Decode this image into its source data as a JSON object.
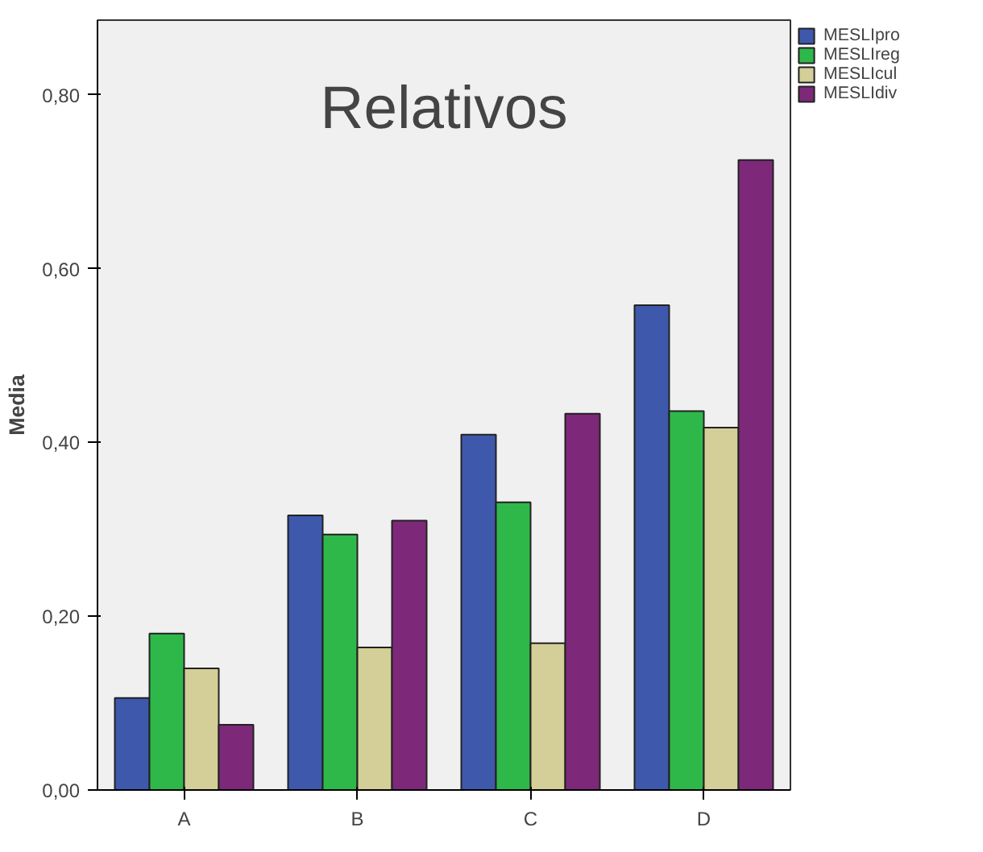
{
  "chart_data": {
    "type": "bar",
    "title": "Relativos",
    "ylabel": "Media",
    "categories": [
      "A",
      "B",
      "C",
      "D"
    ],
    "series": [
      {
        "name": "MESLIpro",
        "color": "#3e58ac",
        "values": [
          0.106,
          0.316,
          0.409,
          0.558
        ]
      },
      {
        "name": "MESLIreg",
        "color": "#2fb84a",
        "values": [
          0.18,
          0.294,
          0.331,
          0.436
        ]
      },
      {
        "name": "MESLIcul",
        "color": "#d4cf98",
        "values": [
          0.14,
          0.164,
          0.169,
          0.417
        ]
      },
      {
        "name": "MESLIdiv",
        "color": "#7e287a",
        "values": [
          0.075,
          0.31,
          0.433,
          0.725
        ]
      }
    ],
    "ylim": [
      0,
      0.886
    ],
    "yticks": [
      {
        "value": 0,
        "label": "0,00"
      },
      {
        "value": 0.2,
        "label": "0,20"
      },
      {
        "value": 0.4,
        "label": "0,40"
      },
      {
        "value": 0.6,
        "label": "0,60"
      },
      {
        "value": 0.8,
        "label": "0,80"
      }
    ],
    "legend": "top right"
  }
}
